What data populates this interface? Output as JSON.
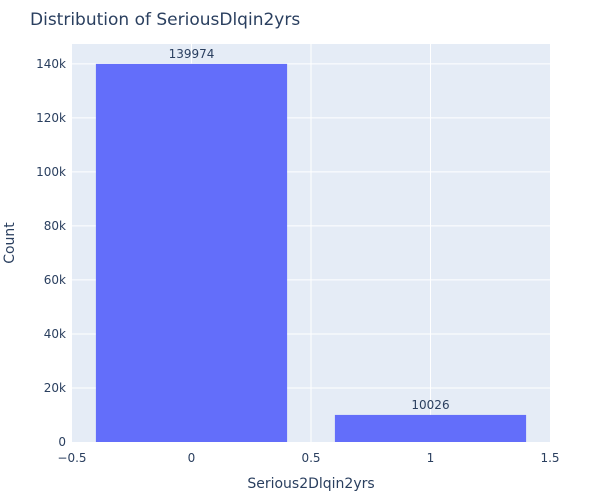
{
  "chart_data": {
    "type": "bar",
    "title": "Distribution of SeriousDlqin2yrs",
    "xlabel": "Serious2Dlqin2yrs",
    "ylabel": "Count",
    "x": [
      0,
      1
    ],
    "values": [
      139974,
      10026
    ],
    "data_labels": [
      "139974",
      "10026"
    ],
    "bar_width": 0.8,
    "xlim": [
      -0.5,
      1.5
    ],
    "ylim": [
      0,
      147341
    ],
    "x_ticks": [
      -0.5,
      0,
      0.5,
      1,
      1.5
    ],
    "x_tick_labels": [
      "−0.5",
      "0",
      "0.5",
      "1",
      "1.5"
    ],
    "y_ticks": [
      0,
      20000,
      40000,
      60000,
      80000,
      100000,
      120000,
      140000
    ],
    "y_tick_labels": [
      "0",
      "20k",
      "40k",
      "60k",
      "80k",
      "100k",
      "120k",
      "140k"
    ],
    "grid": true,
    "colors": {
      "bar": "#636efa",
      "plot_bg": "#e5ecf6",
      "grid": "#ffffff",
      "text": "#2a3f5f"
    }
  }
}
